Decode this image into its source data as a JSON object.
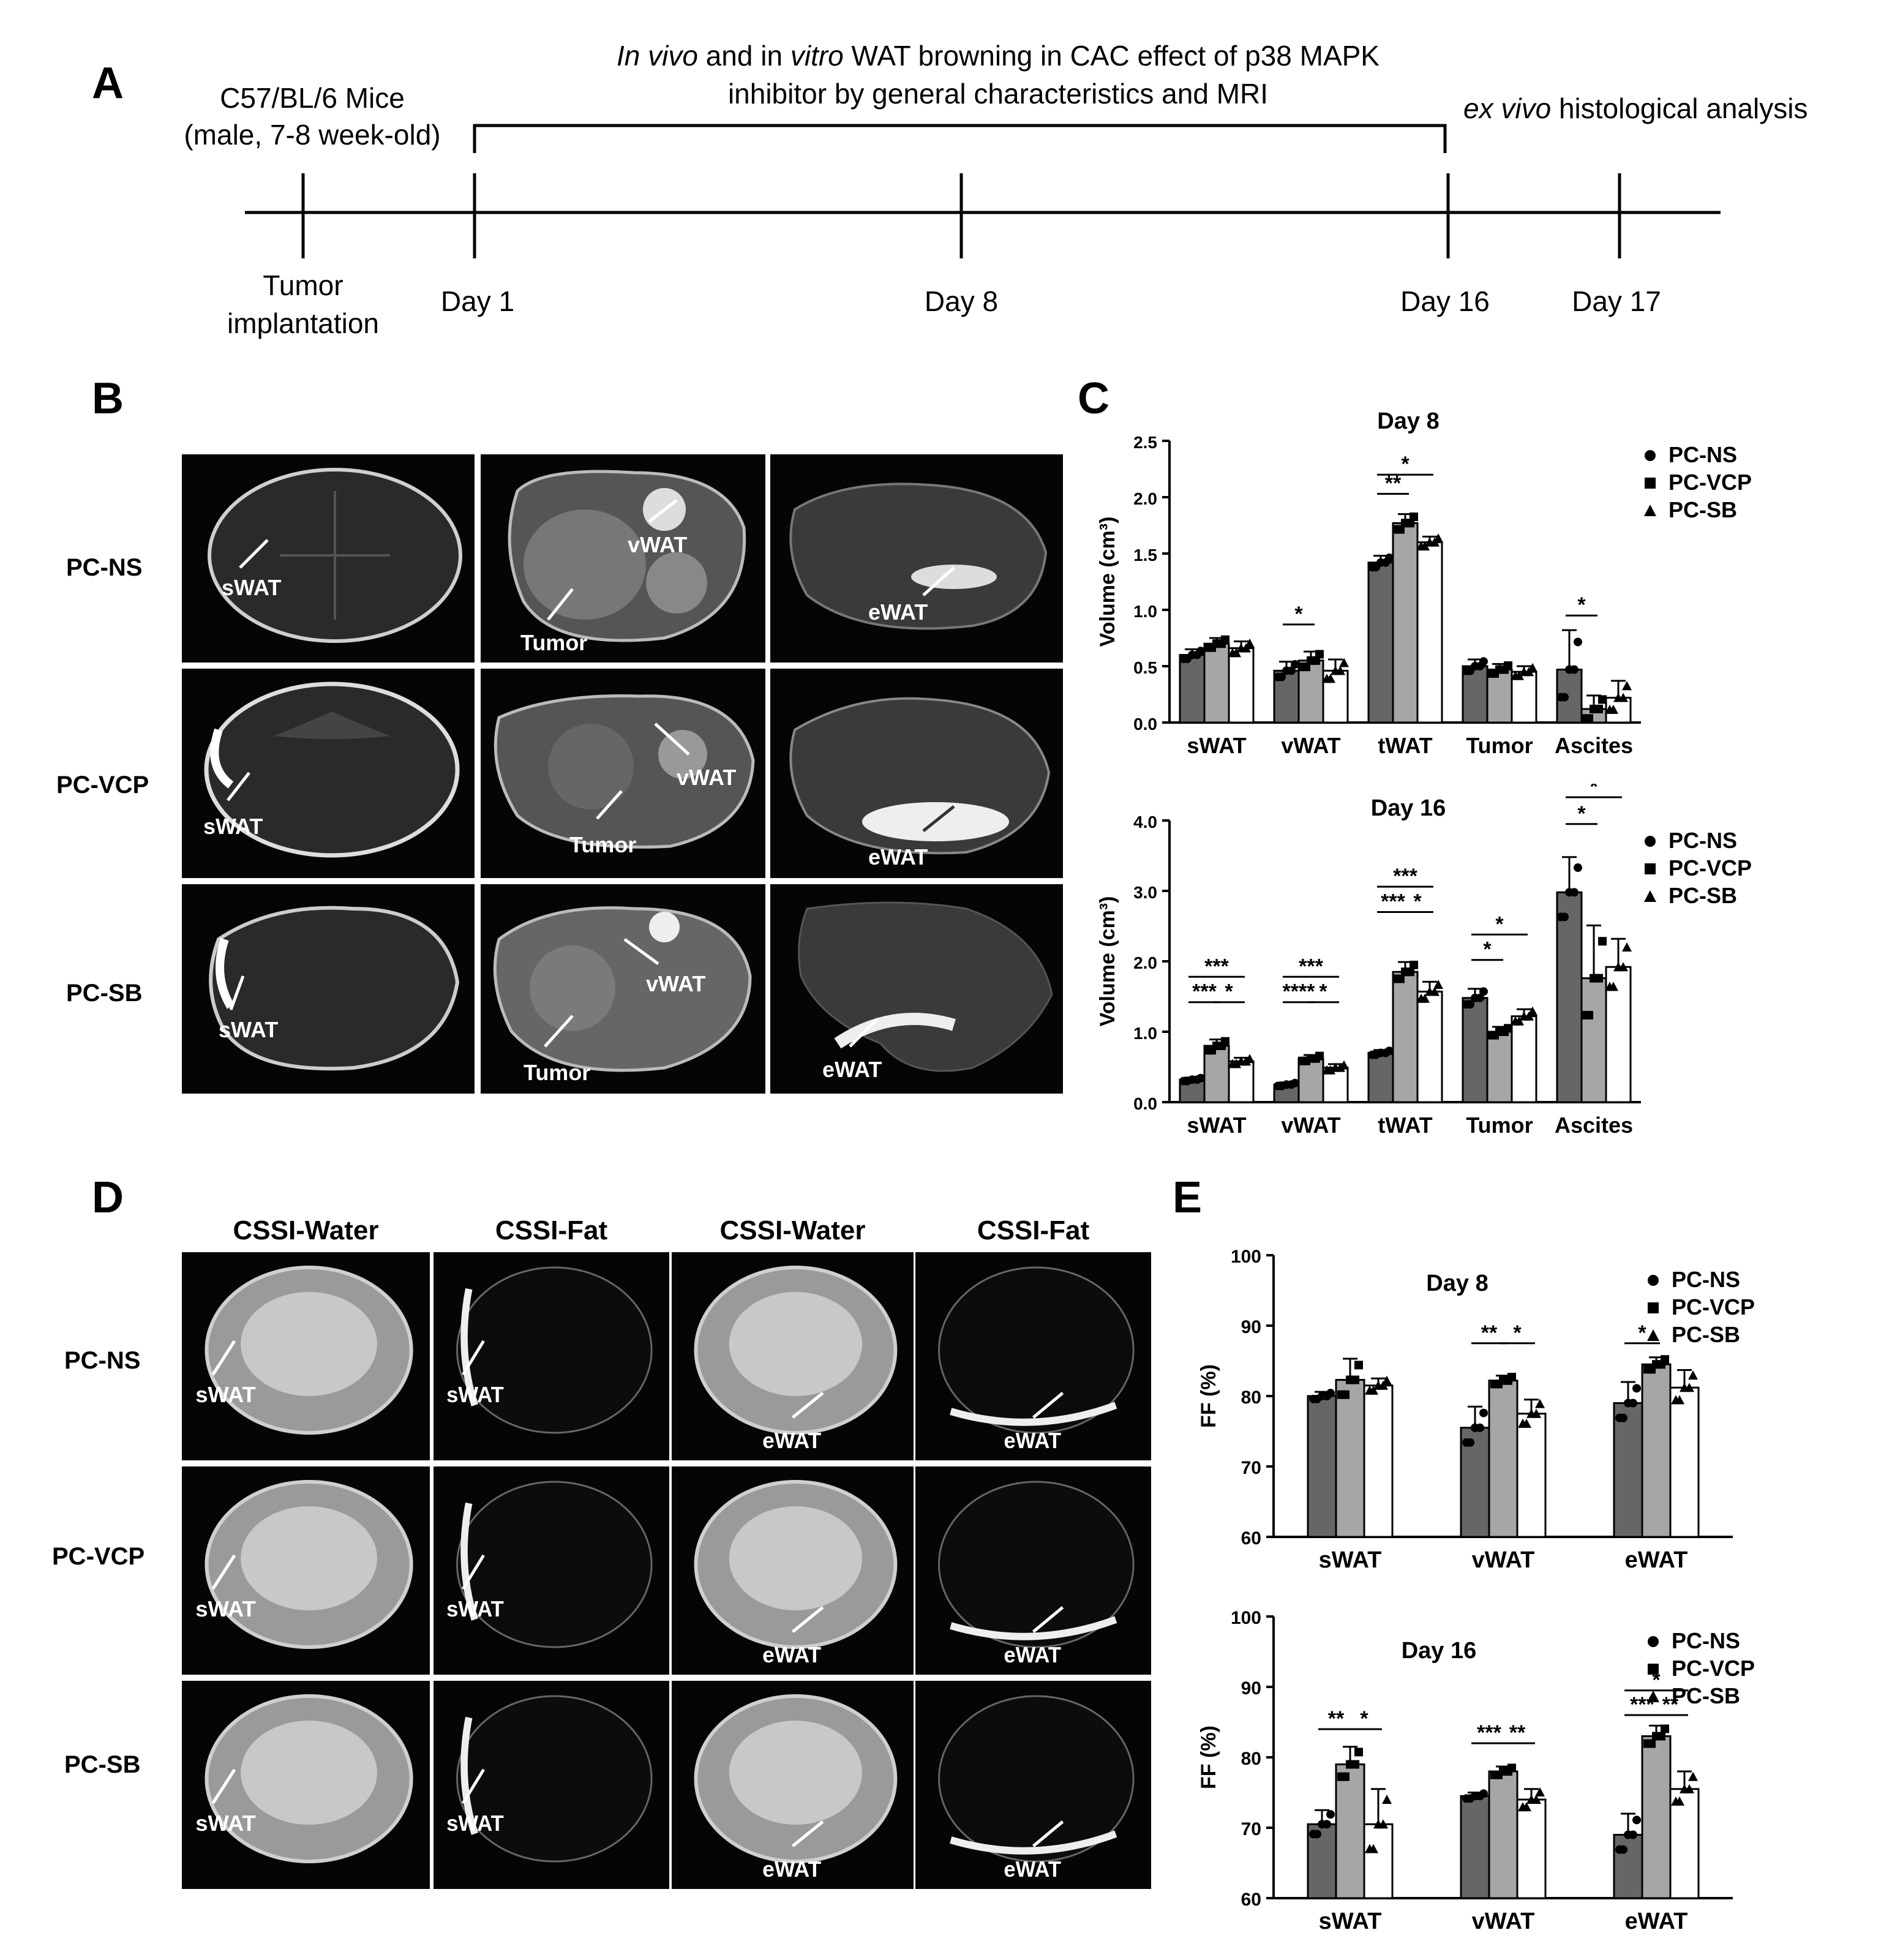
{
  "panelA": {
    "letter": "A",
    "left_title_1": "C57/BL/6 Mice",
    "left_title_2": "(male, 7-8 week-old)",
    "bracket_title_1_i1": "In vivo",
    "bracket_title_1_m1": " and in ",
    "bracket_title_1_i2": "vitro",
    "bracket_title_1_m2": " WAT browning in CAC effect of p38 MAPK",
    "bracket_title_2": "inhibitor by general characteristics and MRI",
    "right_title_i": "ex vivo",
    "right_title_r": " histological analysis",
    "ticks": [
      "Tumor\nimplantation",
      "Day 1",
      "Day 8",
      "Day 16",
      "Day 17"
    ],
    "tick_1_line1": "Tumor",
    "tick_1_line2": "implantation"
  },
  "panelB": {
    "letter": "B",
    "rows": [
      "PC-NS",
      "PC-VCP",
      "PC-SB"
    ],
    "annotations": {
      "sWAT": "sWAT",
      "vWAT": "vWAT",
      "eWAT": "eWAT",
      "Tumor": "Tumor"
    }
  },
  "panelC": {
    "letter": "C"
  },
  "panelD": {
    "letter": "D",
    "columns": [
      "CSSI-Water",
      "CSSI-Fat",
      "CSSI-Water",
      "CSSI-Fat"
    ],
    "rows": [
      "PC-NS",
      "PC-VCP",
      "PC-SB"
    ]
  },
  "panelE": {
    "letter": "E"
  },
  "legend": [
    "PC-NS",
    "PC-VCP",
    "PC-SB"
  ],
  "colors": {
    "PC-NS": "#666666",
    "PC-VCP": "#a6a6a6",
    "PC-SB": "#ffffff"
  },
  "chart_data": [
    {
      "id": "C8",
      "type": "bar",
      "title": "Day 8",
      "ylabel": "Volume (cm³)",
      "ylim": [
        0,
        2.5
      ],
      "yticks": [
        "0.0",
        "0.5",
        "1.0",
        "1.5",
        "2.0",
        "2.5"
      ],
      "categories": [
        "sWAT",
        "vWAT",
        "tWAT",
        "Tumor",
        "Ascites"
      ],
      "series": [
        {
          "name": "PC-NS",
          "values": [
            0.6,
            0.46,
            1.42,
            0.5,
            0.47
          ],
          "err": [
            0.05,
            0.08,
            0.06,
            0.06,
            0.35
          ]
        },
        {
          "name": "PC-VCP",
          "values": [
            0.7,
            0.55,
            1.77,
            0.47,
            0.12
          ],
          "err": [
            0.05,
            0.08,
            0.08,
            0.05,
            0.12
          ]
        },
        {
          "name": "PC-SB",
          "values": [
            0.66,
            0.46,
            1.6,
            0.45,
            0.22
          ],
          "err": [
            0.06,
            0.1,
            0.05,
            0.05,
            0.15
          ]
        }
      ],
      "significance": [
        {
          "cat": 1,
          "from": 0,
          "to": 1,
          "label": "*",
          "y": 0.87
        },
        {
          "cat": 2,
          "from": 0,
          "to": 1,
          "label": "**",
          "y": 2.03
        },
        {
          "cat": 2,
          "from": 0,
          "to": 2,
          "label": "*",
          "y": 2.2
        },
        {
          "cat": 4,
          "from": 0,
          "to": 1,
          "label": "*",
          "y": 0.95
        }
      ]
    },
    {
      "id": "C16",
      "type": "bar",
      "title": "Day 16",
      "ylabel": "Volume (cm³)",
      "ylim": [
        0,
        4.0
      ],
      "yticks": [
        "0.0",
        "1.0",
        "2.0",
        "3.0",
        "4.0"
      ],
      "categories": [
        "sWAT",
        "vWAT",
        "tWAT",
        "Tumor",
        "Ascites"
      ],
      "series": [
        {
          "name": "PC-NS",
          "values": [
            0.32,
            0.25,
            0.7,
            1.48,
            2.98
          ],
          "err": [
            0.03,
            0.03,
            0.04,
            0.13,
            0.5
          ]
        },
        {
          "name": "PC-VCP",
          "values": [
            0.8,
            0.62,
            1.85,
            1.0,
            1.76
          ],
          "err": [
            0.09,
            0.05,
            0.14,
            0.07,
            0.75
          ]
        },
        {
          "name": "PC-SB",
          "values": [
            0.58,
            0.49,
            1.57,
            1.22,
            1.92
          ],
          "err": [
            0.05,
            0.05,
            0.14,
            0.1,
            0.4
          ]
        }
      ],
      "significance": [
        {
          "cat": 0,
          "from": 0,
          "to": 1,
          "label": "***",
          "y": 1.42
        },
        {
          "cat": 0,
          "from": 1,
          "to": 2,
          "label": "*",
          "y": 1.42
        },
        {
          "cat": 0,
          "from": 0,
          "to": 2,
          "label": "***",
          "y": 1.78
        },
        {
          "cat": 1,
          "from": 0,
          "to": 1,
          "label": "****",
          "y": 1.42
        },
        {
          "cat": 1,
          "from": 1,
          "to": 2,
          "label": "*",
          "y": 1.42
        },
        {
          "cat": 1,
          "from": 0,
          "to": 2,
          "label": "***",
          "y": 1.78
        },
        {
          "cat": 2,
          "from": 0,
          "to": 1,
          "label": "***",
          "y": 2.7
        },
        {
          "cat": 2,
          "from": 1,
          "to": 2,
          "label": "*",
          "y": 2.7
        },
        {
          "cat": 2,
          "from": 0,
          "to": 2,
          "label": "***",
          "y": 3.06
        },
        {
          "cat": 3,
          "from": 0,
          "to": 1,
          "label": "*",
          "y": 2.02
        },
        {
          "cat": 3,
          "from": 0,
          "to": 2,
          "label": "*",
          "y": 2.38
        },
        {
          "cat": 4,
          "from": 0,
          "to": 1,
          "label": "*",
          "y": 3.95
        },
        {
          "cat": 4,
          "from": 0,
          "to": 2,
          "label": "*",
          "y": 4.33
        }
      ]
    },
    {
      "id": "E8",
      "type": "bar",
      "title": "Day 8",
      "ylabel": "FF (%)",
      "ylim": [
        60,
        100
      ],
      "yticks": [
        "60",
        "70",
        "80",
        "90",
        "100"
      ],
      "categories": [
        "sWAT",
        "vWAT",
        "eWAT"
      ],
      "series": [
        {
          "name": "PC-NS",
          "values": [
            80.0,
            75.5,
            79.0
          ],
          "err": [
            0.6,
            3.0,
            3.0
          ]
        },
        {
          "name": "PC-VCP",
          "values": [
            82.3,
            82.2,
            84.5
          ],
          "err": [
            3.0,
            0.7,
            1.0
          ]
        },
        {
          "name": "PC-SB",
          "values": [
            81.5,
            77.5,
            81.2
          ],
          "err": [
            1.0,
            2.0,
            2.5
          ]
        }
      ],
      "significance": [
        {
          "cat": 1,
          "from": 0,
          "to": 1,
          "label": "**",
          "y": 87.5
        },
        {
          "cat": 1,
          "from": 1,
          "to": 2,
          "label": "*",
          "y": 87.5
        },
        {
          "cat": 2,
          "from": 0,
          "to": 1,
          "label": "*",
          "y": 87.5
        }
      ]
    },
    {
      "id": "E16",
      "type": "bar",
      "title": "Day 16",
      "ylabel": "FF (%)",
      "ylim": [
        60,
        100
      ],
      "yticks": [
        "60",
        "70",
        "80",
        "90",
        "100"
      ],
      "categories": [
        "sWAT",
        "vWAT",
        "eWAT"
      ],
      "series": [
        {
          "name": "PC-NS",
          "values": [
            70.5,
            74.5,
            69.0
          ],
          "err": [
            2.0,
            0.5,
            3.0
          ]
        },
        {
          "name": "PC-VCP",
          "values": [
            79.0,
            78.0,
            83.0
          ],
          "err": [
            2.5,
            0.7,
            1.5
          ]
        },
        {
          "name": "PC-SB",
          "values": [
            70.5,
            74.0,
            75.5
          ],
          "err": [
            5.0,
            1.5,
            2.5
          ]
        }
      ],
      "significance": [
        {
          "cat": 0,
          "from": 0,
          "to": 1,
          "label": "**",
          "y": 84.0
        },
        {
          "cat": 0,
          "from": 1,
          "to": 2,
          "label": "*",
          "y": 84.0
        },
        {
          "cat": 1,
          "from": 0,
          "to": 1,
          "label": "***",
          "y": 82.0
        },
        {
          "cat": 1,
          "from": 1,
          "to": 2,
          "label": "**",
          "y": 82.0
        },
        {
          "cat": 2,
          "from": 0,
          "to": 1,
          "label": "***",
          "y": 86.0
        },
        {
          "cat": 2,
          "from": 1,
          "to": 2,
          "label": "**",
          "y": 86.0
        },
        {
          "cat": 2,
          "from": 0,
          "to": 2,
          "label": "*",
          "y": 89.5
        }
      ]
    }
  ]
}
